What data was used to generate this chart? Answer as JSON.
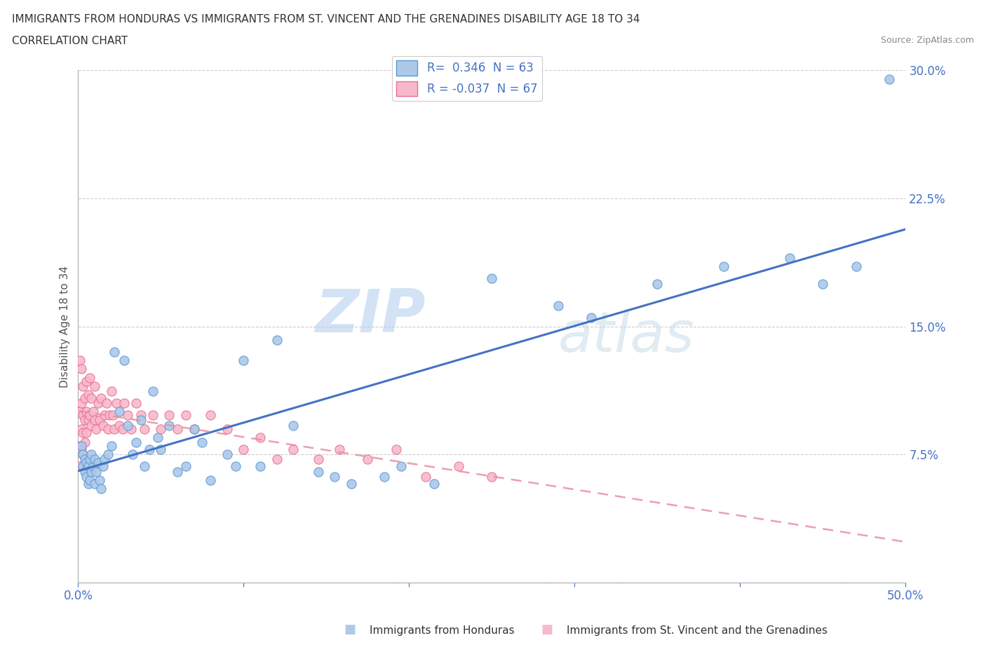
{
  "title": "IMMIGRANTS FROM HONDURAS VS IMMIGRANTS FROM ST. VINCENT AND THE GRENADINES DISABILITY AGE 18 TO 34",
  "subtitle": "CORRELATION CHART",
  "source": "Source: ZipAtlas.com",
  "ylabel": "Disability Age 18 to 34",
  "legend_label1": "Immigrants from Honduras",
  "legend_label2": "Immigrants from St. Vincent and the Grenadines",
  "R1": 0.346,
  "N1": 63,
  "R2": -0.037,
  "N2": 67,
  "xlim": [
    0.0,
    0.5
  ],
  "ylim": [
    0.0,
    0.3
  ],
  "xticks": [
    0.0,
    0.1,
    0.2,
    0.3,
    0.4,
    0.5
  ],
  "yticks": [
    0.0,
    0.075,
    0.15,
    0.225,
    0.3
  ],
  "xticklabels": [
    "0.0%",
    "",
    "",
    "",
    "",
    "50.0%"
  ],
  "yticklabels": [
    "",
    "7.5%",
    "15.0%",
    "22.5%",
    "30.0%"
  ],
  "color1": "#adc8e8",
  "color2": "#f8b8cb",
  "edge_color1": "#5b9bd5",
  "edge_color2": "#e87090",
  "line_color1": "#4472c4",
  "line_color2": "#e8909a",
  "tick_color": "#4472c4",
  "watermark_color": "#c8dff0",
  "blue_x": [
    0.002,
    0.003,
    0.003,
    0.004,
    0.004,
    0.005,
    0.005,
    0.006,
    0.006,
    0.007,
    0.007,
    0.008,
    0.008,
    0.009,
    0.01,
    0.01,
    0.011,
    0.012,
    0.013,
    0.014,
    0.015,
    0.016,
    0.018,
    0.02,
    0.022,
    0.025,
    0.028,
    0.03,
    0.033,
    0.035,
    0.038,
    0.04,
    0.043,
    0.045,
    0.048,
    0.05,
    0.055,
    0.06,
    0.065,
    0.07,
    0.075,
    0.08,
    0.09,
    0.095,
    0.1,
    0.11,
    0.12,
    0.13,
    0.145,
    0.155,
    0.165,
    0.185,
    0.195,
    0.215,
    0.25,
    0.29,
    0.31,
    0.35,
    0.39,
    0.43,
    0.45,
    0.47,
    0.49
  ],
  "blue_y": [
    0.08,
    0.075,
    0.068,
    0.072,
    0.065,
    0.062,
    0.07,
    0.058,
    0.068,
    0.072,
    0.06,
    0.065,
    0.075,
    0.068,
    0.058,
    0.072,
    0.065,
    0.07,
    0.06,
    0.055,
    0.068,
    0.072,
    0.075,
    0.08,
    0.135,
    0.1,
    0.13,
    0.092,
    0.075,
    0.082,
    0.095,
    0.068,
    0.078,
    0.112,
    0.085,
    0.078,
    0.092,
    0.065,
    0.068,
    0.09,
    0.082,
    0.06,
    0.075,
    0.068,
    0.13,
    0.068,
    0.142,
    0.092,
    0.065,
    0.062,
    0.058,
    0.062,
    0.068,
    0.058,
    0.178,
    0.162,
    0.155,
    0.175,
    0.185,
    0.19,
    0.175,
    0.185,
    0.295
  ],
  "pink_x": [
    0.001,
    0.001,
    0.001,
    0.001,
    0.002,
    0.002,
    0.002,
    0.002,
    0.003,
    0.003,
    0.003,
    0.003,
    0.004,
    0.004,
    0.004,
    0.005,
    0.005,
    0.005,
    0.006,
    0.006,
    0.007,
    0.007,
    0.008,
    0.008,
    0.009,
    0.01,
    0.01,
    0.011,
    0.012,
    0.013,
    0.014,
    0.015,
    0.016,
    0.017,
    0.018,
    0.019,
    0.02,
    0.021,
    0.022,
    0.023,
    0.025,
    0.027,
    0.028,
    0.03,
    0.032,
    0.035,
    0.038,
    0.04,
    0.045,
    0.05,
    0.055,
    0.06,
    0.065,
    0.07,
    0.08,
    0.09,
    0.1,
    0.11,
    0.12,
    0.13,
    0.145,
    0.158,
    0.175,
    0.192,
    0.21,
    0.23,
    0.25
  ],
  "pink_y": [
    0.13,
    0.1,
    0.08,
    0.068,
    0.125,
    0.105,
    0.09,
    0.078,
    0.115,
    0.098,
    0.088,
    0.075,
    0.108,
    0.095,
    0.082,
    0.118,
    0.1,
    0.088,
    0.11,
    0.095,
    0.12,
    0.098,
    0.108,
    0.092,
    0.1,
    0.115,
    0.095,
    0.09,
    0.105,
    0.095,
    0.108,
    0.092,
    0.098,
    0.105,
    0.09,
    0.098,
    0.112,
    0.098,
    0.09,
    0.105,
    0.092,
    0.09,
    0.105,
    0.098,
    0.09,
    0.105,
    0.098,
    0.09,
    0.098,
    0.09,
    0.098,
    0.09,
    0.098,
    0.09,
    0.098,
    0.09,
    0.078,
    0.085,
    0.072,
    0.078,
    0.072,
    0.078,
    0.072,
    0.078,
    0.062,
    0.068,
    0.062
  ]
}
